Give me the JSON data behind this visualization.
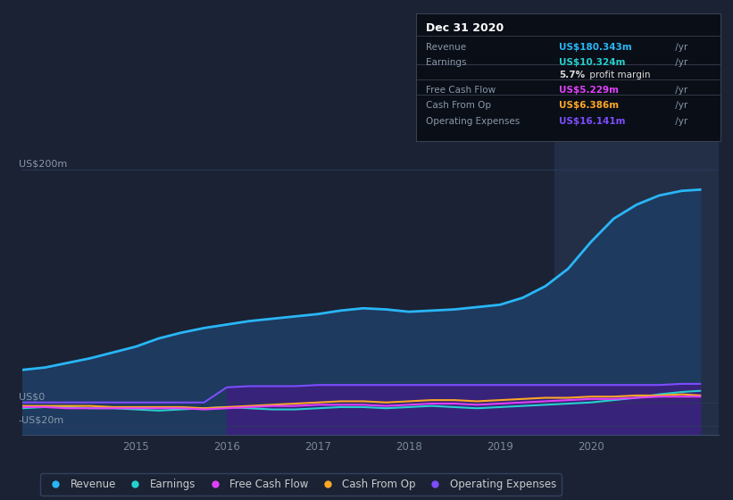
{
  "bg_color": "#1a2234",
  "plot_bg_color": "#1a2234",
  "highlight_bg": "#232f47",
  "title": "Dec 31 2020",
  "y_label_200": "US$200m",
  "y_label_0": "US$0",
  "y_label_neg20": "-US$20m",
  "ylim": [
    -28,
    230
  ],
  "xlim_start": 2013.75,
  "xlim_end": 2021.4,
  "xticks": [
    2015,
    2016,
    2017,
    2018,
    2019,
    2020
  ],
  "years": [
    2013.75,
    2014.0,
    2014.25,
    2014.5,
    2014.75,
    2015.0,
    2015.25,
    2015.5,
    2015.75,
    2016.0,
    2016.25,
    2016.5,
    2016.75,
    2017.0,
    2017.25,
    2017.5,
    2017.75,
    2018.0,
    2018.25,
    2018.5,
    2018.75,
    2019.0,
    2019.25,
    2019.5,
    2019.75,
    2020.0,
    2020.25,
    2020.5,
    2020.75,
    2021.0,
    2021.2
  ],
  "revenue": [
    28,
    30,
    34,
    38,
    43,
    48,
    55,
    60,
    64,
    67,
    70,
    72,
    74,
    76,
    79,
    81,
    80,
    78,
    79,
    80,
    82,
    84,
    90,
    100,
    115,
    138,
    158,
    170,
    178,
    182,
    183
  ],
  "earnings": [
    -5,
    -4,
    -4,
    -5,
    -5,
    -6,
    -7,
    -6,
    -5,
    -4,
    -5,
    -6,
    -6,
    -5,
    -4,
    -4,
    -5,
    -4,
    -3,
    -4,
    -5,
    -4,
    -3,
    -2,
    -1,
    0,
    2,
    4,
    7,
    9,
    10
  ],
  "free_cash_flow": [
    -4,
    -4,
    -5,
    -5,
    -5,
    -5,
    -5,
    -5,
    -6,
    -5,
    -4,
    -3,
    -3,
    -2,
    -2,
    -2,
    -3,
    -2,
    -1,
    -1,
    -2,
    -1,
    0,
    1,
    2,
    3,
    3,
    4,
    5,
    5,
    5
  ],
  "cash_from_op": [
    -3,
    -3,
    -3,
    -3,
    -4,
    -4,
    -4,
    -4,
    -5,
    -4,
    -3,
    -2,
    -1,
    0,
    1,
    1,
    0,
    1,
    2,
    2,
    1,
    2,
    3,
    4,
    4,
    5,
    5,
    6,
    6,
    7,
    6
  ],
  "operating_expenses": [
    0,
    0,
    0,
    0,
    0,
    0,
    0,
    0,
    0,
    13,
    14,
    14,
    14,
    15,
    15,
    15,
    15,
    15,
    15,
    15,
    15,
    15,
    15,
    15,
    15,
    15,
    15,
    15,
    15,
    16,
    16
  ],
  "revenue_color": "#29b6f6",
  "earnings_color": "#26d0ce",
  "free_cash_flow_color": "#e040fb",
  "cash_from_op_color": "#ffa726",
  "operating_expenses_color": "#7c4dff",
  "highlight_start": 2019.6,
  "highlight_end": 2021.4,
  "tooltip": {
    "title": "Dec 31 2020",
    "title_color": "#ffffff",
    "bg_color": "#0a0e17",
    "border_color": "#3a4050",
    "rows": [
      {
        "label": "Revenue",
        "value": "US$180.343m",
        "value_color": "#29b6f6"
      },
      {
        "label": "Earnings",
        "value": "US$10.324m",
        "value_color": "#26d0ce"
      },
      {
        "label": "",
        "value": "5.7% profit margin",
        "value_color": "#dddddd"
      },
      {
        "label": "Free Cash Flow",
        "value": "US$5.229m",
        "value_color": "#e040fb"
      },
      {
        "label": "Cash From Op",
        "value": "US$6.386m",
        "value_color": "#ffa726"
      },
      {
        "label": "Operating Expenses",
        "value": "US$16.141m",
        "value_color": "#7c4dff"
      }
    ]
  },
  "legend": [
    {
      "label": "Revenue",
      "color": "#29b6f6"
    },
    {
      "label": "Earnings",
      "color": "#26d0ce"
    },
    {
      "label": "Free Cash Flow",
      "color": "#e040fb"
    },
    {
      "label": "Cash From Op",
      "color": "#ffa726"
    },
    {
      "label": "Operating Expenses",
      "color": "#7c4dff"
    }
  ]
}
